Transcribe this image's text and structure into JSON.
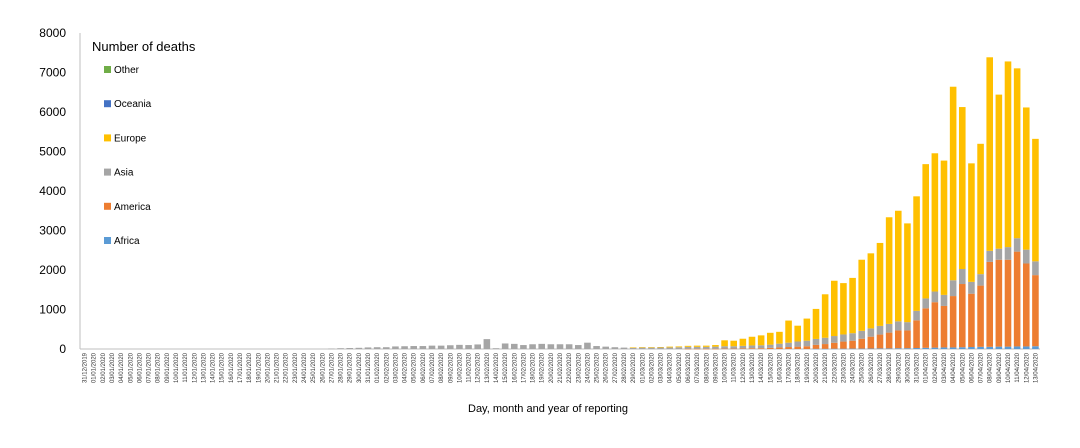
{
  "chart_data": {
    "type": "bar",
    "stacked": true,
    "title": "",
    "legend_title": "Number of deaths",
    "legend_placement": "top-left",
    "xlabel": "Day, month and year of reporting",
    "ylabel": "",
    "ylim": [
      0,
      8000
    ],
    "yticks": [
      0,
      1000,
      2000,
      3000,
      4000,
      5000,
      6000,
      7000,
      8000
    ],
    "grid": false,
    "categories": [
      "31/12/2019",
      "01/01/2020",
      "02/01/2020",
      "03/01/2020",
      "04/01/2020",
      "05/01/2020",
      "06/01/2020",
      "07/01/2020",
      "08/01/2020",
      "09/01/2020",
      "10/01/2020",
      "11/01/2020",
      "12/01/2020",
      "13/01/2020",
      "14/01/2020",
      "15/01/2020",
      "16/01/2020",
      "17/01/2020",
      "18/01/2020",
      "19/01/2020",
      "20/01/2020",
      "21/01/2020",
      "22/01/2020",
      "23/01/2020",
      "24/01/2020",
      "25/01/2020",
      "26/01/2020",
      "27/01/2020",
      "28/01/2020",
      "29/01/2020",
      "30/01/2020",
      "31/01/2020",
      "01/02/2020",
      "02/02/2020",
      "03/02/2020",
      "04/02/2020",
      "05/02/2020",
      "06/02/2020",
      "07/02/2020",
      "08/02/2020",
      "09/02/2020",
      "10/02/2020",
      "11/02/2020",
      "12/02/2020",
      "13/02/2020",
      "14/02/2020",
      "15/02/2020",
      "16/02/2020",
      "17/02/2020",
      "18/02/2020",
      "19/02/2020",
      "20/02/2020",
      "21/02/2020",
      "22/02/2020",
      "23/02/2020",
      "24/02/2020",
      "25/02/2020",
      "26/02/2020",
      "27/02/2020",
      "28/02/2020",
      "29/02/2020",
      "01/03/2020",
      "02/03/2020",
      "03/03/2020",
      "04/03/2020",
      "05/03/2020",
      "06/03/2020",
      "07/03/2020",
      "08/03/2020",
      "09/03/2020",
      "10/03/2020",
      "11/03/2020",
      "12/03/2020",
      "13/03/2020",
      "14/03/2020",
      "15/03/2020",
      "16/03/2020",
      "17/03/2020",
      "18/03/2020",
      "19/03/2020",
      "20/03/2020",
      "21/03/2020",
      "22/03/2020",
      "23/03/2020",
      "24/03/2020",
      "25/03/2020",
      "26/03/2020",
      "27/03/2020",
      "28/03/2020",
      "29/03/2020",
      "30/03/2020",
      "31/03/2020",
      "01/04/2020",
      "02/04/2020",
      "03/04/2020",
      "04/04/2020",
      "05/04/2020",
      "06/04/2020",
      "07/04/2020",
      "08/04/2020",
      "09/04/2020",
      "10/04/2020",
      "11/04/2020",
      "12/04/2020",
      "13/04/2020"
    ],
    "series": [
      {
        "name": "Africa",
        "color": "#5b9bd5",
        "values": [
          0,
          0,
          0,
          0,
          0,
          0,
          0,
          0,
          0,
          0,
          0,
          0,
          0,
          0,
          0,
          0,
          0,
          0,
          0,
          0,
          0,
          0,
          0,
          0,
          0,
          0,
          0,
          0,
          0,
          0,
          0,
          0,
          0,
          0,
          0,
          0,
          0,
          0,
          0,
          0,
          0,
          0,
          0,
          0,
          0,
          0,
          0,
          0,
          0,
          0,
          0,
          0,
          0,
          0,
          0,
          0,
          0,
          0,
          0,
          0,
          0,
          0,
          0,
          0,
          0,
          0,
          0,
          0,
          0,
          0,
          0,
          0,
          0,
          0,
          0,
          0,
          0,
          0,
          0,
          0,
          5,
          5,
          8,
          8,
          10,
          10,
          12,
          15,
          15,
          20,
          20,
          25,
          30,
          35,
          40,
          40,
          45,
          50,
          55,
          55,
          60,
          60,
          65,
          65,
          70
        ]
      },
      {
        "name": "America",
        "color": "#ed7d31",
        "values": [
          0,
          0,
          0,
          0,
          0,
          0,
          0,
          0,
          0,
          0,
          0,
          0,
          0,
          0,
          0,
          0,
          0,
          0,
          0,
          0,
          0,
          0,
          0,
          0,
          0,
          0,
          0,
          0,
          0,
          0,
          0,
          0,
          0,
          0,
          0,
          0,
          0,
          0,
          0,
          0,
          0,
          0,
          0,
          0,
          0,
          0,
          0,
          0,
          0,
          0,
          0,
          0,
          0,
          0,
          0,
          0,
          0,
          0,
          0,
          0,
          0,
          0,
          0,
          0,
          0,
          0,
          5,
          5,
          5,
          5,
          10,
          10,
          15,
          20,
          20,
          30,
          40,
          50,
          60,
          70,
          100,
          120,
          150,
          180,
          200,
          250,
          300,
          350,
          400,
          450,
          450,
          700,
          1000,
          1150,
          1050,
          1300,
          1600,
          1350,
          1550,
          2150,
          2200,
          2200,
          2400,
          2100,
          1800
        ]
      },
      {
        "name": "Asia",
        "color": "#a5a5a5",
        "values": [
          0,
          0,
          0,
          0,
          0,
          0,
          0,
          0,
          0,
          0,
          0,
          0,
          0,
          0,
          0,
          0,
          0,
          0,
          0,
          0,
          0,
          0,
          0,
          0,
          0,
          0,
          0,
          10,
          20,
          25,
          30,
          40,
          45,
          45,
          65,
          70,
          75,
          75,
          85,
          85,
          95,
          105,
          100,
          115,
          250,
          20,
          140,
          130,
          100,
          120,
          130,
          120,
          120,
          120,
          100,
          160,
          75,
          60,
          45,
          35,
          35,
          40,
          40,
          40,
          40,
          45,
          50,
          50,
          50,
          55,
          60,
          60,
          65,
          70,
          75,
          80,
          95,
          110,
          130,
          140,
          150,
          160,
          170,
          180,
          190,
          200,
          210,
          220,
          220,
          230,
          210,
          240,
          250,
          270,
          280,
          400,
          380,
          300,
          290,
          280,
          280,
          320,
          340,
          350,
          350
        ]
      },
      {
        "name": "Europe",
        "color": "#ffc000",
        "values": [
          0,
          0,
          0,
          0,
          0,
          0,
          0,
          0,
          0,
          0,
          0,
          0,
          0,
          0,
          0,
          0,
          0,
          0,
          0,
          0,
          0,
          0,
          0,
          0,
          0,
          0,
          0,
          0,
          0,
          0,
          0,
          0,
          0,
          0,
          0,
          0,
          0,
          0,
          0,
          0,
          0,
          0,
          0,
          0,
          0,
          0,
          0,
          0,
          0,
          0,
          0,
          0,
          0,
          0,
          0,
          0,
          0,
          0,
          0,
          0,
          5,
          5,
          5,
          10,
          20,
          20,
          25,
          30,
          30,
          40,
          150,
          140,
          180,
          220,
          250,
          300,
          300,
          560,
          400,
          560,
          760,
          1100,
          1400,
          1300,
          1400,
          1800,
          1900,
          2100,
          2700,
          2800,
          2500,
          2900,
          3400,
          3500,
          3400,
          4900,
          4100,
          3000,
          3300,
          4900,
          3900,
          4700,
          4300,
          3600,
          3100
        ]
      },
      {
        "name": "Oceania",
        "color": "#4472c4",
        "values": [
          0,
          0,
          0,
          0,
          0,
          0,
          0,
          0,
          0,
          0,
          0,
          0,
          0,
          0,
          0,
          0,
          0,
          0,
          0,
          0,
          0,
          0,
          0,
          0,
          0,
          0,
          0,
          0,
          0,
          0,
          0,
          0,
          0,
          0,
          0,
          0,
          0,
          0,
          0,
          0,
          0,
          0,
          0,
          0,
          0,
          0,
          0,
          0,
          0,
          0,
          0,
          0,
          0,
          0,
          0,
          0,
          0,
          0,
          0,
          0,
          0,
          0,
          0,
          0,
          0,
          0,
          0,
          0,
          0,
          0,
          0,
          0,
          0,
          0,
          0,
          0,
          0,
          0,
          0,
          0,
          0,
          0,
          0,
          0,
          0,
          0,
          0,
          0,
          0,
          0,
          0,
          0,
          0,
          0,
          0,
          0,
          0,
          0,
          0,
          0,
          0,
          0,
          0,
          0,
          0
        ]
      },
      {
        "name": "Other",
        "color": "#70ad47",
        "values": [
          0,
          0,
          0,
          0,
          0,
          0,
          0,
          0,
          0,
          0,
          0,
          0,
          0,
          0,
          0,
          0,
          0,
          0,
          0,
          0,
          0,
          0,
          0,
          0,
          0,
          0,
          0,
          0,
          0,
          0,
          0,
          0,
          0,
          0,
          0,
          0,
          0,
          0,
          0,
          0,
          0,
          0,
          0,
          0,
          0,
          0,
          0,
          0,
          0,
          0,
          0,
          0,
          0,
          0,
          0,
          0,
          0,
          0,
          0,
          0,
          0,
          0,
          0,
          0,
          0,
          0,
          0,
          0,
          0,
          0,
          0,
          0,
          0,
          0,
          0,
          0,
          0,
          0,
          0,
          0,
          0,
          0,
          0,
          0,
          0,
          0,
          0,
          0,
          0,
          0,
          0,
          0,
          0,
          0,
          0,
          0,
          0,
          0,
          0,
          0,
          0,
          0,
          0,
          0,
          0
        ]
      }
    ]
  }
}
